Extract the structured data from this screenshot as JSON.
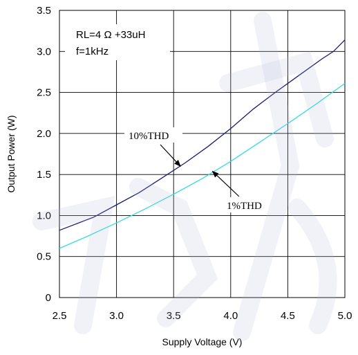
{
  "chart_data": {
    "type": "line",
    "title": "",
    "xlabel": "Supply Voltage (V)",
    "ylabel": "Output Power (W)",
    "xlim": [
      2.5,
      5.0
    ],
    "ylim": [
      0,
      3.5
    ],
    "x_ticks": [
      "2.5",
      "3.0",
      "3.5",
      "4.0",
      "4.5",
      "5.0"
    ],
    "y_ticks": [
      "0",
      "0.5",
      "1.0",
      "1.5",
      "2.0",
      "2.5",
      "3.0",
      "3.5"
    ],
    "grid": true,
    "conditions": [
      "RL=4 Ω +33uH",
      "f=1kHz"
    ],
    "series": [
      {
        "name": "10%THD",
        "color": "#1a1a6e",
        "x": [
          2.5,
          2.8,
          3.0,
          3.2,
          3.4,
          3.6,
          3.8,
          4.0,
          4.2,
          4.4,
          4.6,
          4.8,
          4.9,
          5.0
        ],
        "y": [
          0.82,
          0.98,
          1.13,
          1.28,
          1.46,
          1.64,
          1.84,
          2.06,
          2.3,
          2.51,
          2.71,
          2.91,
          3.0,
          3.14
        ]
      },
      {
        "name": "1%THD",
        "color": "#33dddd",
        "x": [
          2.5,
          2.75,
          3.0,
          3.25,
          3.5,
          3.75,
          4.0,
          4.25,
          4.5,
          4.75,
          5.0
        ],
        "y": [
          0.6,
          0.75,
          0.91,
          1.08,
          1.26,
          1.45,
          1.66,
          1.89,
          2.12,
          2.36,
          2.61
        ]
      }
    ],
    "annotations": [
      {
        "text": "10%THD",
        "target_x": 3.56,
        "target_y": 1.6
      },
      {
        "text": "1%THD",
        "target_x": 3.84,
        "target_y": 1.54
      }
    ]
  }
}
